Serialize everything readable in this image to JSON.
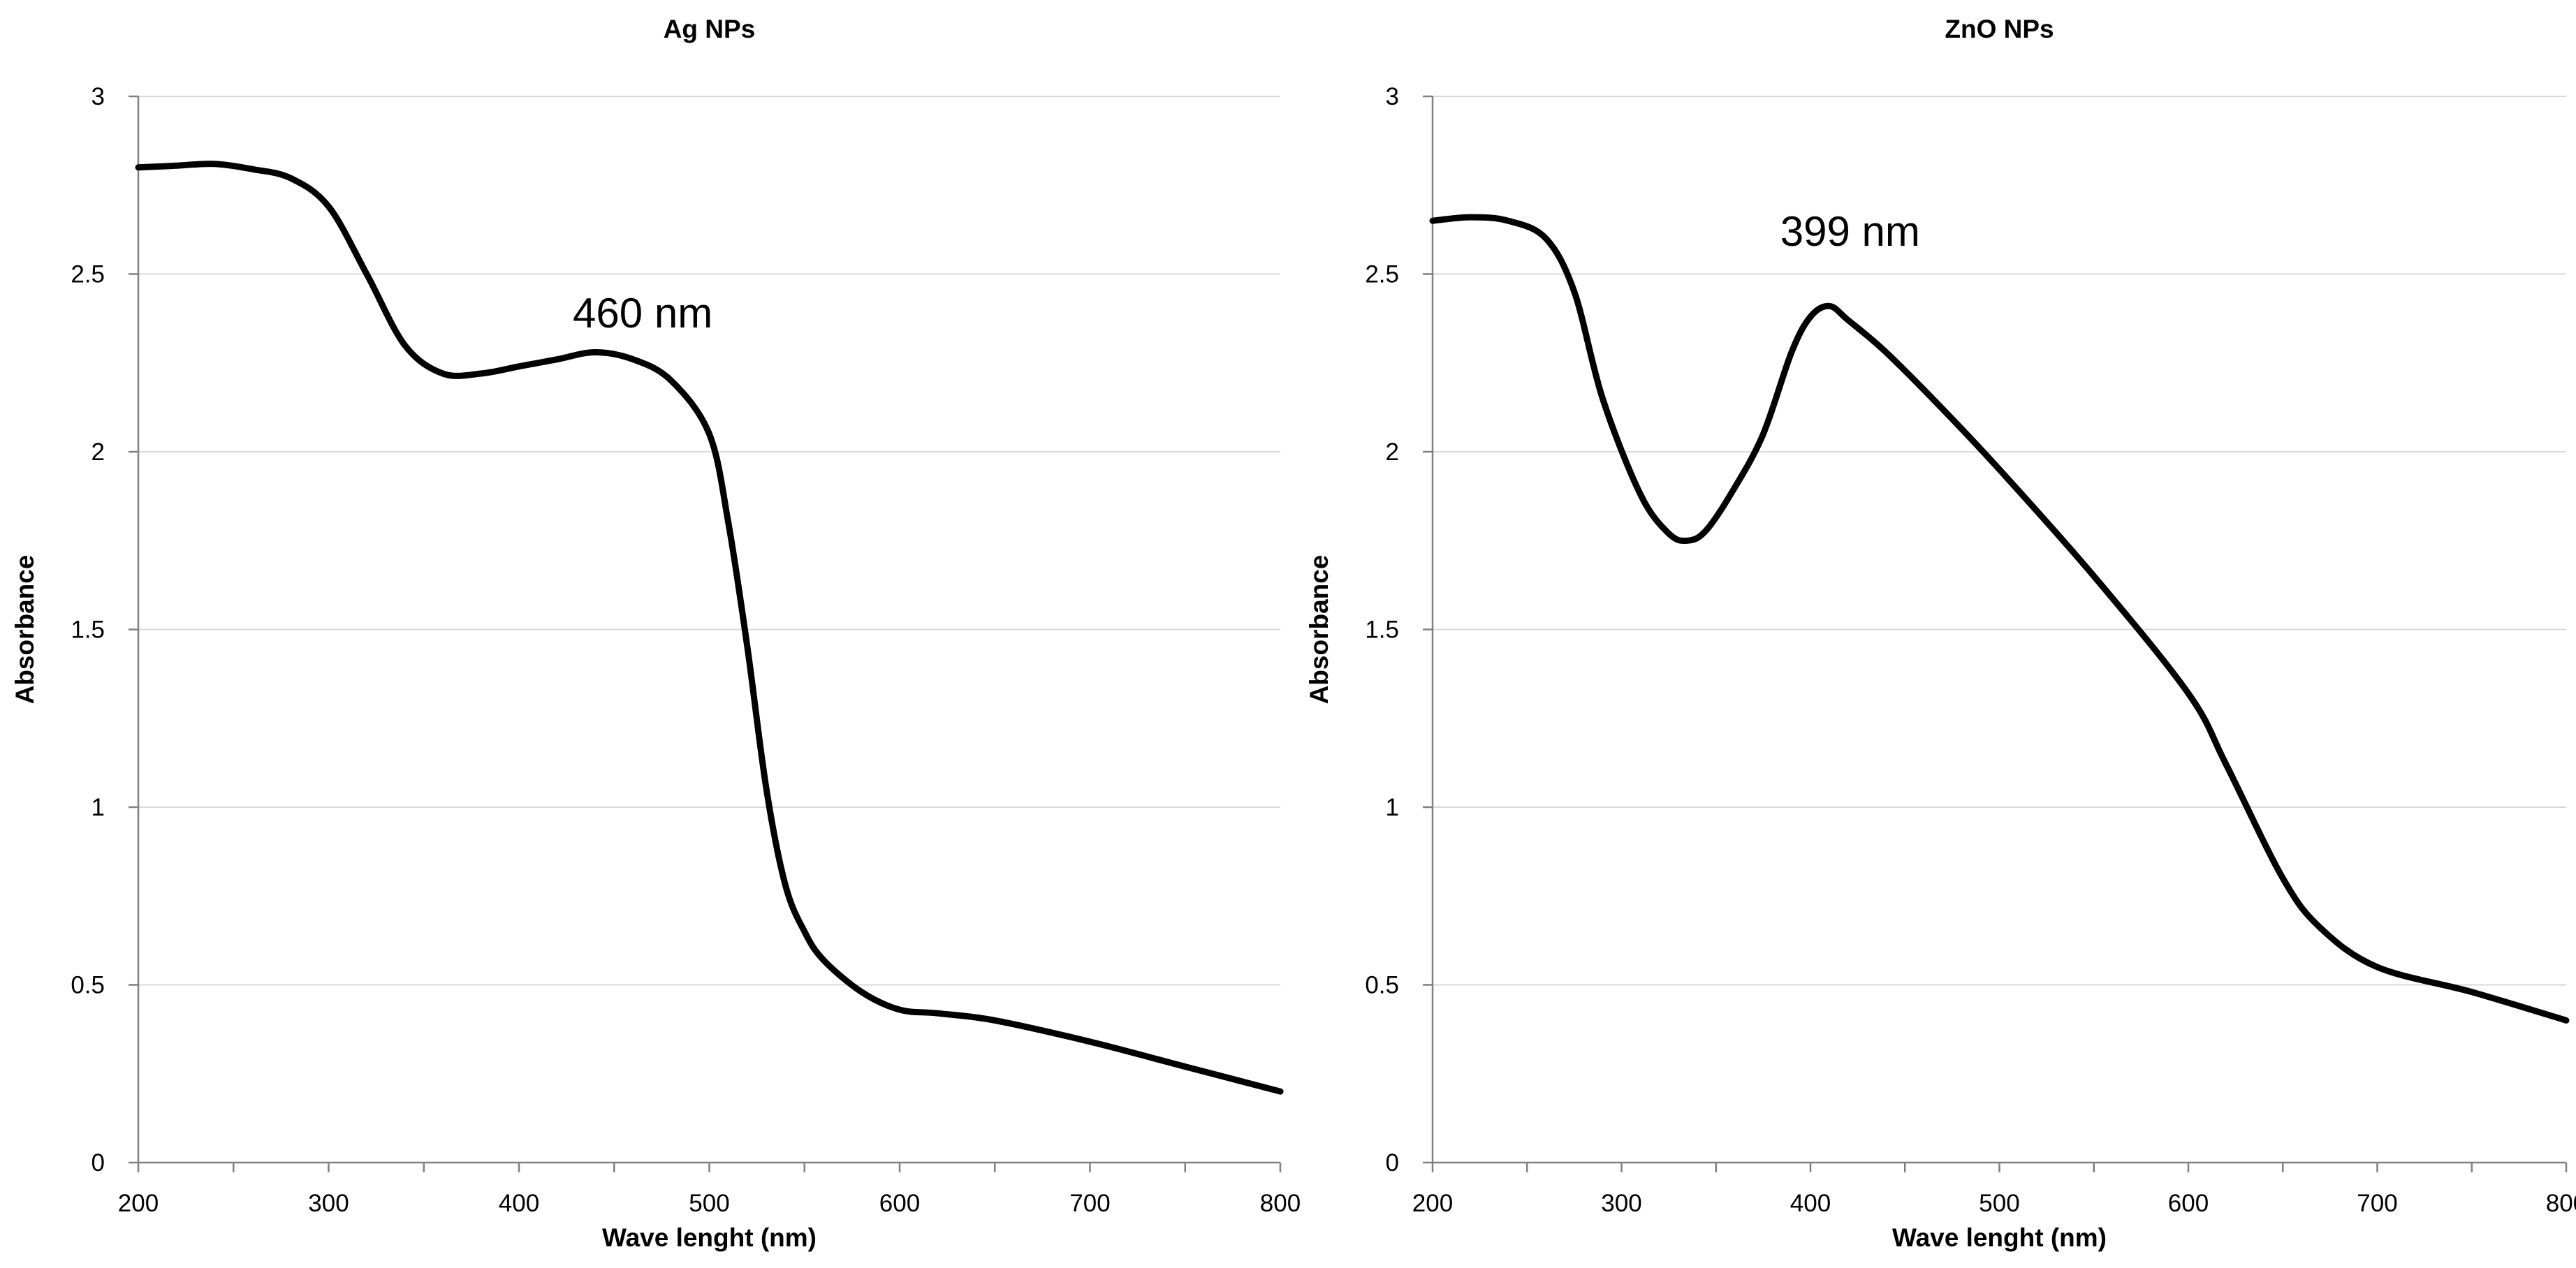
{
  "chart_data": [
    {
      "type": "line",
      "title": "Ag NPs",
      "xlabel": "Wave lenght (nm)",
      "ylabel": "Absorbance",
      "xlim": [
        200,
        800
      ],
      "ylim": [
        0,
        3
      ],
      "xticks": [
        200,
        300,
        400,
        500,
        600,
        700,
        800
      ],
      "yticks": [
        0,
        0.5,
        1,
        1.5,
        2,
        2.5,
        3
      ],
      "grid": "horizontal",
      "series": [
        {
          "name": "Ag NPs",
          "color": "#000000",
          "x": [
            200,
            220,
            240,
            260,
            280,
            300,
            320,
            340,
            360,
            380,
            400,
            420,
            440,
            460,
            480,
            500,
            510,
            520,
            530,
            540,
            550,
            560,
            580,
            600,
            620,
            650,
            700,
            750,
            800
          ],
          "y": [
            2.8,
            2.805,
            2.81,
            2.795,
            2.77,
            2.69,
            2.5,
            2.3,
            2.22,
            2.22,
            2.24,
            2.26,
            2.28,
            2.26,
            2.2,
            2.05,
            1.8,
            1.45,
            1.05,
            0.78,
            0.65,
            0.57,
            0.48,
            0.43,
            0.42,
            0.4,
            0.34,
            0.27,
            0.2
          ]
        }
      ],
      "annotations": [
        {
          "text": "460 nm",
          "x": 465,
          "y": 2.35
        }
      ]
    },
    {
      "type": "line",
      "title": "ZnO NPs",
      "xlabel": "Wave lenght (nm)",
      "ylabel": "Absorbance",
      "xlim": [
        200,
        800
      ],
      "ylim": [
        0,
        3
      ],
      "xticks": [
        200,
        300,
        400,
        500,
        600,
        700,
        800
      ],
      "yticks": [
        0,
        0.5,
        1,
        1.5,
        2,
        2.5,
        3
      ],
      "grid": "horizontal",
      "series": [
        {
          "name": "ZnO NPs",
          "color": "#000000",
          "x": [
            200,
            220,
            240,
            260,
            275,
            290,
            310,
            325,
            335,
            345,
            360,
            375,
            390,
            400,
            410,
            420,
            440,
            470,
            500,
            550,
            600,
            620,
            650,
            670,
            700,
            750,
            800
          ],
          "y": [
            2.65,
            2.66,
            2.65,
            2.6,
            2.45,
            2.15,
            1.88,
            1.77,
            1.75,
            1.78,
            1.9,
            2.05,
            2.28,
            2.38,
            2.41,
            2.37,
            2.28,
            2.12,
            1.95,
            1.65,
            1.32,
            1.12,
            0.8,
            0.66,
            0.55,
            0.48,
            0.4
          ]
        }
      ],
      "annotations": [
        {
          "text": "399 nm",
          "x": 421,
          "y": 2.58
        }
      ]
    }
  ]
}
